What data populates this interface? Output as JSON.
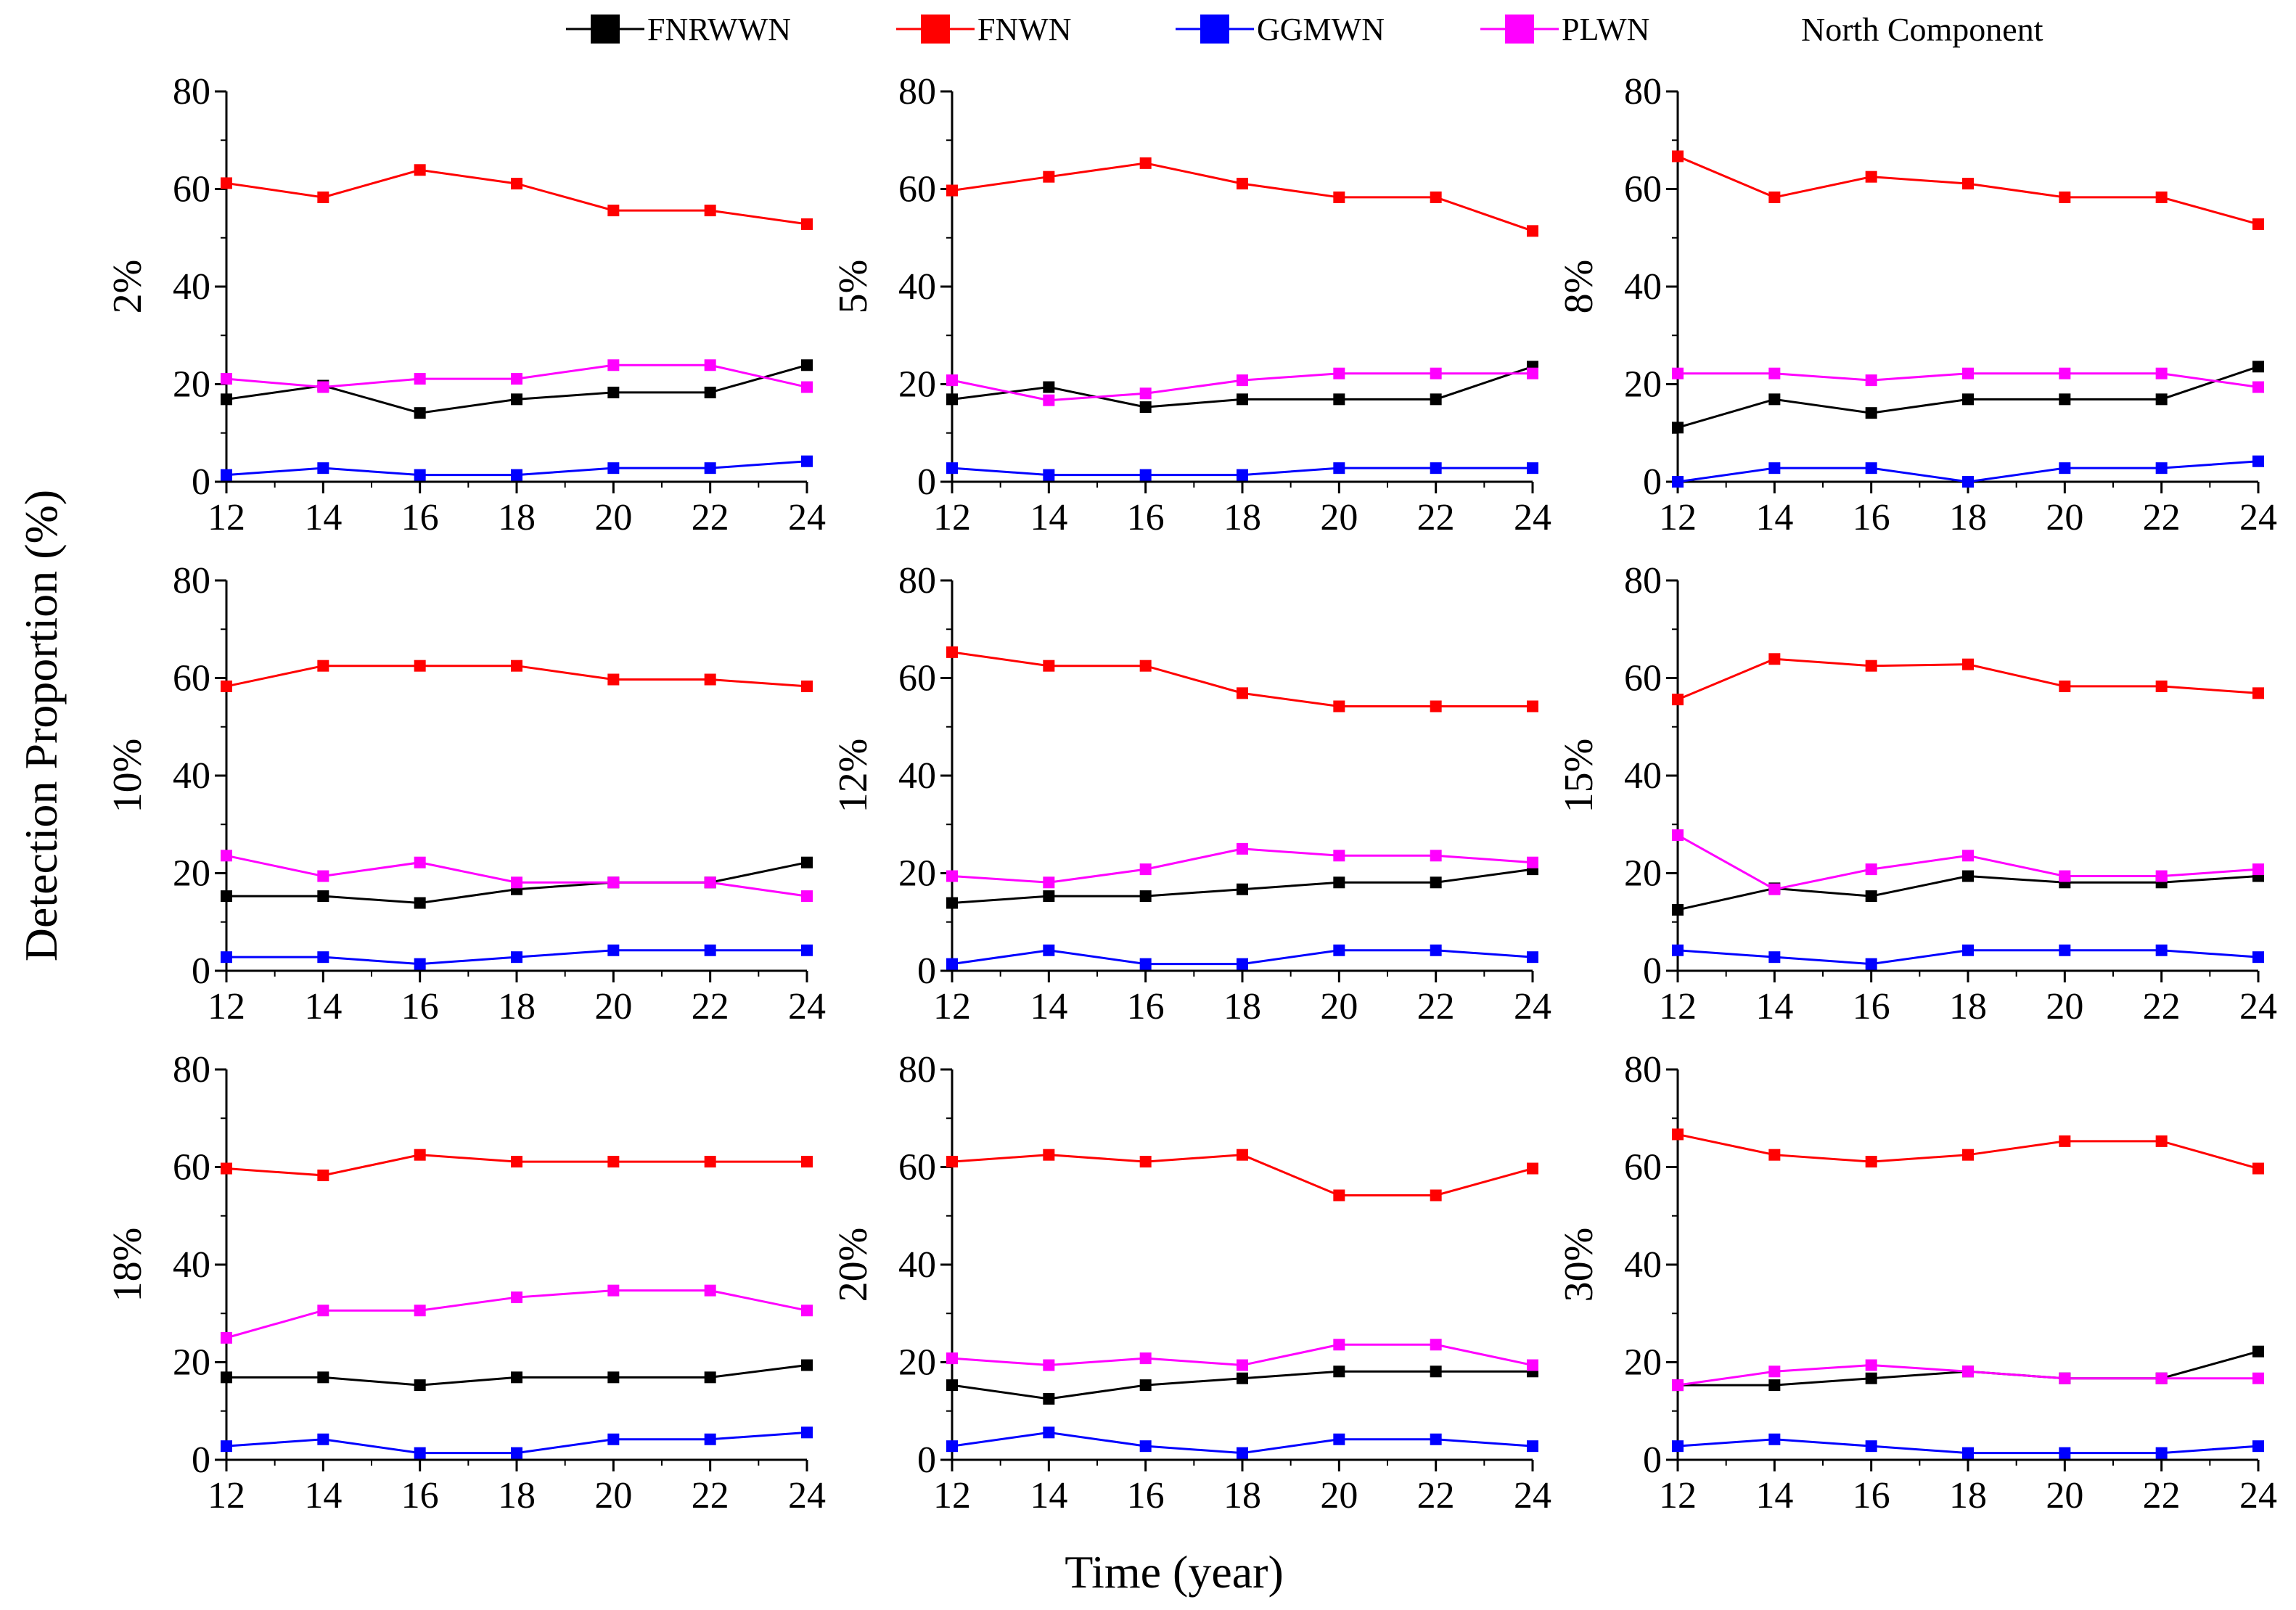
{
  "figure": {
    "ylabel": "Detection Proportion  (%)",
    "xlabel": "Time  (year)",
    "legend_title": "North Component"
  },
  "series_styles": [
    {
      "name": "FNRWWN",
      "color": "#000000"
    },
    {
      "name": "FNWN",
      "color": "#ff0000"
    },
    {
      "name": "GGMWN",
      "color": "#0000ff"
    },
    {
      "name": "PLWN",
      "color": "#ff00ff"
    }
  ],
  "chart_data": [
    {
      "type": "line",
      "title": "2%",
      "x": [
        12,
        14,
        16,
        18,
        20,
        22,
        24
      ],
      "xlim": [
        12,
        24
      ],
      "ylim": [
        0,
        80
      ],
      "xticks": [
        12,
        14,
        16,
        18,
        20,
        22,
        24
      ],
      "yticks": [
        0,
        20,
        40,
        60,
        80
      ],
      "series": [
        {
          "name": "FNRWWN",
          "values": [
            16.9,
            19.7,
            14.1,
            16.9,
            18.3,
            18.3,
            23.9
          ]
        },
        {
          "name": "FNWN",
          "values": [
            61.2,
            58.3,
            63.9,
            61.1,
            55.6,
            55.6,
            52.8
          ]
        },
        {
          "name": "GGMWN",
          "values": [
            1.4,
            2.8,
            1.4,
            1.4,
            2.8,
            2.8,
            4.2
          ]
        },
        {
          "name": "PLWN",
          "values": [
            21.1,
            19.4,
            21.1,
            21.1,
            23.9,
            23.9,
            19.4
          ]
        }
      ]
    },
    {
      "type": "line",
      "title": "5%",
      "x": [
        12,
        14,
        16,
        18,
        20,
        22,
        24
      ],
      "xlim": [
        12,
        24
      ],
      "ylim": [
        0,
        80
      ],
      "xticks": [
        12,
        14,
        16,
        18,
        20,
        22,
        24
      ],
      "yticks": [
        0,
        20,
        40,
        60,
        80
      ],
      "series": [
        {
          "name": "FNRWWN",
          "values": [
            16.9,
            19.4,
            15.3,
            16.9,
            16.9,
            16.9,
            23.6
          ]
        },
        {
          "name": "FNWN",
          "values": [
            59.7,
            62.5,
            65.3,
            61.1,
            58.3,
            58.3,
            51.4
          ]
        },
        {
          "name": "GGMWN",
          "values": [
            2.8,
            1.4,
            1.4,
            1.4,
            2.8,
            2.8,
            2.8
          ]
        },
        {
          "name": "PLWN",
          "values": [
            20.8,
            16.7,
            18.1,
            20.8,
            22.2,
            22.2,
            22.2
          ]
        }
      ]
    },
    {
      "type": "line",
      "title": "8%",
      "x": [
        12,
        14,
        16,
        18,
        20,
        22,
        24
      ],
      "xlim": [
        12,
        24
      ],
      "ylim": [
        0,
        80
      ],
      "xticks": [
        12,
        14,
        16,
        18,
        20,
        22,
        24
      ],
      "yticks": [
        0,
        20,
        40,
        60,
        80
      ],
      "series": [
        {
          "name": "FNRWWN",
          "values": [
            11.1,
            16.9,
            14.1,
            16.9,
            16.9,
            16.9,
            23.6
          ]
        },
        {
          "name": "FNWN",
          "values": [
            66.7,
            58.3,
            62.5,
            61.1,
            58.3,
            58.3,
            52.8
          ]
        },
        {
          "name": "GGMWN",
          "values": [
            0,
            2.8,
            2.8,
            0,
            2.8,
            2.8,
            4.2
          ]
        },
        {
          "name": "PLWN",
          "values": [
            22.2,
            22.2,
            20.8,
            22.2,
            22.2,
            22.2,
            19.4
          ]
        }
      ]
    },
    {
      "type": "line",
      "title": "10%",
      "x": [
        12,
        14,
        16,
        18,
        20,
        22,
        24
      ],
      "xlim": [
        12,
        24
      ],
      "ylim": [
        0,
        80
      ],
      "xticks": [
        12,
        14,
        16,
        18,
        20,
        22,
        24
      ],
      "yticks": [
        0,
        20,
        40,
        60,
        80
      ],
      "series": [
        {
          "name": "FNRWWN",
          "values": [
            15.3,
            15.3,
            13.9,
            16.7,
            18.1,
            18.1,
            22.2
          ]
        },
        {
          "name": "FNWN",
          "values": [
            58.3,
            62.5,
            62.5,
            62.5,
            59.7,
            59.7,
            58.3
          ]
        },
        {
          "name": "GGMWN",
          "values": [
            2.8,
            2.8,
            1.4,
            2.8,
            4.2,
            4.2,
            4.2
          ]
        },
        {
          "name": "PLWN",
          "values": [
            23.6,
            19.4,
            22.2,
            18.1,
            18.1,
            18.1,
            15.3
          ]
        }
      ]
    },
    {
      "type": "line",
      "title": "12%",
      "x": [
        12,
        14,
        16,
        18,
        20,
        22,
        24
      ],
      "xlim": [
        12,
        24
      ],
      "ylim": [
        0,
        80
      ],
      "xticks": [
        12,
        14,
        16,
        18,
        20,
        22,
        24
      ],
      "yticks": [
        0,
        20,
        40,
        60,
        80
      ],
      "series": [
        {
          "name": "FNRWWN",
          "values": [
            13.9,
            15.3,
            15.3,
            16.7,
            18.1,
            18.1,
            20.8
          ]
        },
        {
          "name": "FNWN",
          "values": [
            65.3,
            62.5,
            62.5,
            56.9,
            54.2,
            54.2,
            54.2
          ]
        },
        {
          "name": "GGMWN",
          "values": [
            1.4,
            4.2,
            1.4,
            1.4,
            4.2,
            4.2,
            2.8
          ]
        },
        {
          "name": "PLWN",
          "values": [
            19.4,
            18.1,
            20.8,
            25.0,
            23.6,
            23.6,
            22.2
          ]
        }
      ]
    },
    {
      "type": "line",
      "title": "15%",
      "x": [
        12,
        14,
        16,
        18,
        20,
        22,
        24
      ],
      "xlim": [
        12,
        24
      ],
      "ylim": [
        0,
        80
      ],
      "xticks": [
        12,
        14,
        16,
        18,
        20,
        22,
        24
      ],
      "yticks": [
        0,
        20,
        40,
        60,
        80
      ],
      "series": [
        {
          "name": "FNRWWN",
          "values": [
            12.5,
            16.9,
            15.3,
            19.4,
            18.1,
            18.1,
            19.4
          ]
        },
        {
          "name": "FNWN",
          "values": [
            55.6,
            63.9,
            62.5,
            62.8,
            58.3,
            58.3,
            56.9
          ]
        },
        {
          "name": "GGMWN",
          "values": [
            4.2,
            2.8,
            1.4,
            4.2,
            4.2,
            4.2,
            2.8
          ]
        },
        {
          "name": "PLWN",
          "values": [
            27.8,
            16.7,
            20.8,
            23.6,
            19.4,
            19.4,
            20.8
          ]
        }
      ]
    },
    {
      "type": "line",
      "title": "18%",
      "x": [
        12,
        14,
        16,
        18,
        20,
        22,
        24
      ],
      "xlim": [
        12,
        24
      ],
      "ylim": [
        0,
        80
      ],
      "xticks": [
        12,
        14,
        16,
        18,
        20,
        22,
        24
      ],
      "yticks": [
        0,
        20,
        40,
        60,
        80
      ],
      "series": [
        {
          "name": "FNRWWN",
          "values": [
            16.9,
            16.9,
            15.3,
            16.9,
            16.9,
            16.9,
            19.4
          ]
        },
        {
          "name": "FNWN",
          "values": [
            59.7,
            58.3,
            62.5,
            61.1,
            61.1,
            61.1,
            61.1
          ]
        },
        {
          "name": "GGMWN",
          "values": [
            2.8,
            4.2,
            1.4,
            1.4,
            4.2,
            4.2,
            5.6
          ]
        },
        {
          "name": "PLWN",
          "values": [
            25.0,
            30.6,
            30.6,
            33.3,
            34.7,
            34.7,
            30.6
          ]
        }
      ]
    },
    {
      "type": "line",
      "title": "20%",
      "x": [
        12,
        14,
        16,
        18,
        20,
        22,
        24
      ],
      "xlim": [
        12,
        24
      ],
      "ylim": [
        0,
        80
      ],
      "xticks": [
        12,
        14,
        16,
        18,
        20,
        22,
        24
      ],
      "yticks": [
        0,
        20,
        40,
        60,
        80
      ],
      "series": [
        {
          "name": "FNRWWN",
          "values": [
            15.3,
            12.5,
            15.3,
            16.7,
            18.1,
            18.1,
            18.1
          ]
        },
        {
          "name": "FNWN",
          "values": [
            61.1,
            62.5,
            61.1,
            62.5,
            54.2,
            54.2,
            59.7
          ]
        },
        {
          "name": "GGMWN",
          "values": [
            2.8,
            5.6,
            2.8,
            1.4,
            4.2,
            4.2,
            2.8
          ]
        },
        {
          "name": "PLWN",
          "values": [
            20.8,
            19.4,
            20.8,
            19.4,
            23.6,
            23.6,
            19.4
          ]
        }
      ]
    },
    {
      "type": "line",
      "title": "30%",
      "x": [
        12,
        14,
        16,
        18,
        20,
        22,
        24
      ],
      "xlim": [
        12,
        24
      ],
      "ylim": [
        0,
        80
      ],
      "xticks": [
        12,
        14,
        16,
        18,
        20,
        22,
        24
      ],
      "yticks": [
        0,
        20,
        40,
        60,
        80
      ],
      "series": [
        {
          "name": "FNRWWN",
          "values": [
            15.3,
            15.3,
            16.7,
            18.1,
            16.7,
            16.7,
            22.2
          ]
        },
        {
          "name": "FNWN",
          "values": [
            66.7,
            62.5,
            61.1,
            62.5,
            65.3,
            65.3,
            59.7
          ]
        },
        {
          "name": "GGMWN",
          "values": [
            2.8,
            4.2,
            2.8,
            1.4,
            1.4,
            1.4,
            2.8
          ]
        },
        {
          "name": "PLWN",
          "values": [
            15.3,
            18.1,
            19.4,
            18.1,
            16.7,
            16.7,
            16.7
          ]
        }
      ]
    }
  ]
}
